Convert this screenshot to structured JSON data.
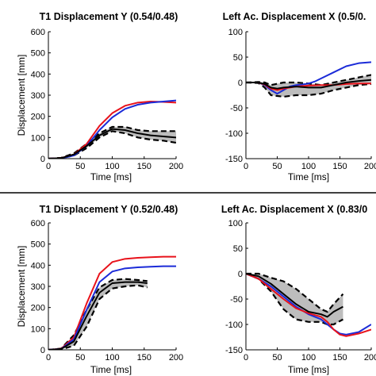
{
  "divider_color": "#000000",
  "chart_data": [
    {
      "type": "line",
      "title": "T1 Displacement Y (0.54/0.48)",
      "xlabel": "Time [ms]",
      "ylabel": "Displacement [mm]",
      "xlim": [
        0,
        200
      ],
      "ylim": [
        0,
        600
      ],
      "xticks": [
        "0",
        "50",
        "100",
        "150",
        "200"
      ],
      "yticks": [
        "0",
        "100",
        "200",
        "300",
        "400",
        "500",
        "600"
      ],
      "series": [
        {
          "color": "#e8121b",
          "dash": false,
          "x": [
            0,
            20,
            40,
            60,
            80,
            100,
            120,
            140,
            160,
            180,
            200
          ],
          "y": [
            0,
            3,
            20,
            70,
            155,
            215,
            250,
            265,
            270,
            268,
            265
          ]
        },
        {
          "color": "#1b2bd8",
          "dash": false,
          "x": [
            0,
            20,
            40,
            60,
            80,
            100,
            120,
            140,
            160,
            180,
            200
          ],
          "y": [
            0,
            2,
            15,
            60,
            135,
            195,
            235,
            255,
            265,
            270,
            275
          ]
        },
        {
          "color": "#000000",
          "dash": false,
          "x": [
            0,
            20,
            40,
            60,
            80,
            100,
            120,
            140,
            160,
            180,
            200
          ],
          "y": [
            0,
            3,
            20,
            60,
            110,
            140,
            135,
            120,
            110,
            105,
            100
          ]
        }
      ],
      "band": {
        "x": [
          0,
          20,
          40,
          60,
          80,
          100,
          120,
          140,
          160,
          180,
          200
        ],
        "upper": [
          0,
          4,
          25,
          70,
          120,
          150,
          150,
          135,
          130,
          130,
          130
        ],
        "lower": [
          0,
          2,
          15,
          50,
          100,
          130,
          120,
          100,
          90,
          85,
          75
        ]
      }
    },
    {
      "type": "line",
      "title": "Left Ac. Displacement X (0.5/0.",
      "xlabel": "Time [ms]",
      "ylabel": "",
      "xlim": [
        0,
        200
      ],
      "ylim": [
        -150,
        100
      ],
      "xticks": [
        "0",
        "50",
        "100",
        "150",
        "200"
      ],
      "yticks": [
        "-150",
        "-100",
        "-50",
        "0",
        "50",
        "100"
      ],
      "series": [
        {
          "color": "#1b2bd8",
          "dash": false,
          "x": [
            0,
            20,
            30,
            40,
            50,
            60,
            70,
            80,
            90,
            100,
            110,
            120,
            140,
            160,
            180,
            200
          ],
          "y": [
            0,
            0,
            -5,
            -15,
            -22,
            -15,
            -8,
            -5,
            -4,
            -2,
            2,
            8,
            20,
            32,
            38,
            40
          ]
        },
        {
          "color": "#e8121b",
          "dash": false,
          "x": [
            0,
            20,
            30,
            40,
            50,
            60,
            80,
            100,
            120,
            140,
            160,
            180,
            200
          ],
          "y": [
            0,
            0,
            -4,
            -12,
            -15,
            -12,
            -8,
            -6,
            -5,
            -5,
            -3,
            -2,
            -2
          ]
        },
        {
          "color": "#000000",
          "dash": false,
          "x": [
            0,
            20,
            30,
            40,
            50,
            60,
            80,
            100,
            120,
            140,
            160,
            180,
            200
          ],
          "y": [
            0,
            0,
            -3,
            -10,
            -12,
            -10,
            -8,
            -10,
            -10,
            -5,
            0,
            3,
            5
          ]
        }
      ],
      "band": {
        "x": [
          0,
          20,
          30,
          40,
          60,
          80,
          100,
          120,
          140,
          160,
          180,
          200
        ],
        "upper": [
          0,
          1,
          0,
          -5,
          0,
          0,
          -2,
          -5,
          0,
          5,
          10,
          15
        ],
        "lower": [
          0,
          -1,
          -10,
          -25,
          -28,
          -25,
          -25,
          -22,
          -15,
          -10,
          -5,
          -3
        ]
      }
    },
    {
      "type": "line",
      "title": "T1 Displacement Y (0.52/0.48)",
      "xlabel": "Time [ms]",
      "ylabel": "Displacement [mm]",
      "xlim": [
        0,
        200
      ],
      "ylim": [
        0,
        600
      ],
      "xticks": [
        "0",
        "50",
        "100",
        "150",
        "200"
      ],
      "yticks": [
        "0",
        "100",
        "200",
        "300",
        "400",
        "500",
        "600"
      ],
      "series": [
        {
          "color": "#e8121b",
          "dash": false,
          "x": [
            0,
            20,
            40,
            60,
            80,
            100,
            120,
            140,
            160,
            180,
            200
          ],
          "y": [
            0,
            5,
            60,
            220,
            360,
            415,
            430,
            435,
            438,
            440,
            440
          ]
        },
        {
          "color": "#1b2bd8",
          "dash": false,
          "x": [
            0,
            20,
            40,
            60,
            80,
            100,
            120,
            140,
            160,
            180,
            200
          ],
          "y": [
            0,
            4,
            50,
            190,
            320,
            370,
            385,
            390,
            393,
            395,
            395
          ]
        },
        {
          "color": "#000000",
          "dash": false,
          "x": [
            0,
            20,
            40,
            60,
            80,
            100,
            120,
            140,
            155
          ],
          "y": [
            0,
            4,
            40,
            160,
            270,
            315,
            320,
            320,
            315
          ]
        }
      ],
      "band": {
        "x": [
          0,
          20,
          40,
          60,
          80,
          100,
          120,
          140,
          155
        ],
        "upper": [
          0,
          6,
          70,
          190,
          295,
          330,
          335,
          330,
          325
        ],
        "lower": [
          0,
          2,
          20,
          110,
          240,
          290,
          300,
          305,
          295
        ]
      }
    },
    {
      "type": "line",
      "title": "Left Ac. Displacement X (0.83/0",
      "xlabel": "Time [ms]",
      "ylabel": "",
      "xlim": [
        0,
        200
      ],
      "ylim": [
        -150,
        100
      ],
      "xticks": [
        "0",
        "50",
        "100",
        "150",
        "200"
      ],
      "yticks": [
        "-150",
        "-100",
        "-50",
        "0",
        "50",
        "100"
      ],
      "series": [
        {
          "color": "#1b2bd8",
          "dash": false,
          "x": [
            0,
            20,
            40,
            60,
            80,
            100,
            120,
            130,
            140,
            150,
            160,
            180,
            200
          ],
          "y": [
            0,
            -10,
            -25,
            -45,
            -65,
            -80,
            -90,
            -100,
            -110,
            -118,
            -120,
            -115,
            -100
          ]
        },
        {
          "color": "#e8121b",
          "dash": false,
          "x": [
            0,
            20,
            40,
            60,
            80,
            100,
            120,
            130,
            140,
            150,
            160,
            180,
            200
          ],
          "y": [
            0,
            -10,
            -30,
            -50,
            -68,
            -78,
            -85,
            -95,
            -110,
            -120,
            -123,
            -118,
            -110
          ]
        },
        {
          "color": "#000000",
          "dash": false,
          "x": [
            0,
            20,
            40,
            60,
            80,
            100,
            120,
            130,
            140,
            155
          ],
          "y": [
            0,
            -5,
            -20,
            -40,
            -60,
            -75,
            -80,
            -85,
            -75,
            -65
          ]
        }
      ],
      "band": {
        "x": [
          0,
          20,
          40,
          60,
          80,
          100,
          120,
          130,
          140,
          155
        ],
        "upper": [
          0,
          0,
          -8,
          -15,
          -30,
          -50,
          -70,
          -75,
          -60,
          -40
        ],
        "lower": [
          0,
          -10,
          -35,
          -70,
          -90,
          -95,
          -95,
          -100,
          -100,
          -90
        ]
      }
    }
  ]
}
